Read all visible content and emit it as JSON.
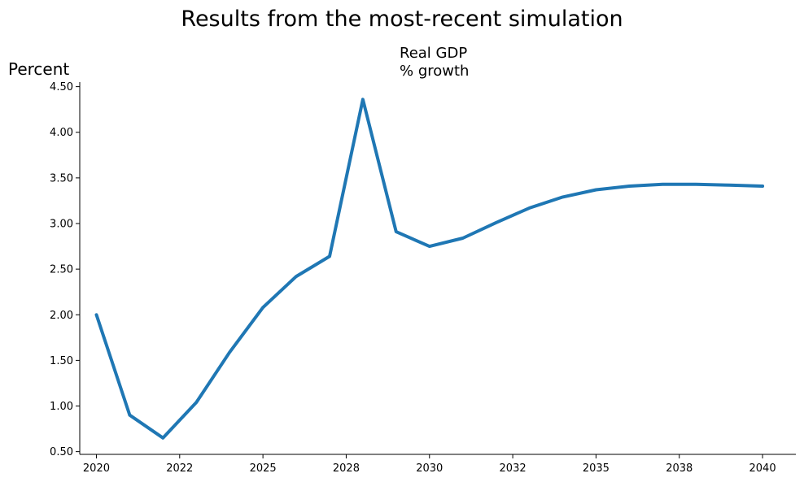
{
  "figure_title": "Results from the most-recent simulation",
  "chart_data": {
    "type": "line",
    "title_lines": [
      "Real GDP",
      "% growth"
    ],
    "ylabel": "Percent",
    "xlabel": "",
    "xlim": [
      2019.5,
      2041.0
    ],
    "ylim": [
      0.47,
      4.55
    ],
    "x_ticks": [
      {
        "x": 2020,
        "label": "2020"
      },
      {
        "x": 2022.5,
        "label": "2022"
      },
      {
        "x": 2025,
        "label": "2025"
      },
      {
        "x": 2027.5,
        "label": "2028"
      },
      {
        "x": 2030,
        "label": "2030"
      },
      {
        "x": 2032.5,
        "label": "2032"
      },
      {
        "x": 2035,
        "label": "2035"
      },
      {
        "x": 2037.5,
        "label": "2038"
      },
      {
        "x": 2040,
        "label": "2040"
      }
    ],
    "y_ticks": [
      {
        "y": 0.5,
        "label": "0.50"
      },
      {
        "y": 1.0,
        "label": "1.00"
      },
      {
        "y": 1.5,
        "label": "1.50"
      },
      {
        "y": 2.0,
        "label": "2.00"
      },
      {
        "y": 2.5,
        "label": "2.50"
      },
      {
        "y": 3.0,
        "label": "3.00"
      },
      {
        "y": 3.5,
        "label": "3.50"
      },
      {
        "y": 4.0,
        "label": "4.00"
      },
      {
        "y": 4.5,
        "label": "4.50"
      }
    ],
    "grid": false,
    "series": [
      {
        "color": "#1f77b4",
        "points": [
          {
            "x": 2020,
            "y": 2.0
          },
          {
            "x": 2021,
            "y": 0.9
          },
          {
            "x": 2022,
            "y": 0.65
          },
          {
            "x": 2023,
            "y": 1.04
          },
          {
            "x": 2024,
            "y": 1.59
          },
          {
            "x": 2025,
            "y": 2.08
          },
          {
            "x": 2026,
            "y": 2.42
          },
          {
            "x": 2027,
            "y": 2.64
          },
          {
            "x": 2028,
            "y": 4.36
          },
          {
            "x": 2029,
            "y": 2.91
          },
          {
            "x": 2030,
            "y": 2.75
          },
          {
            "x": 2031,
            "y": 2.84
          },
          {
            "x": 2032,
            "y": 3.01
          },
          {
            "x": 2033,
            "y": 3.17
          },
          {
            "x": 2034,
            "y": 3.29
          },
          {
            "x": 2035,
            "y": 3.37
          },
          {
            "x": 2036,
            "y": 3.41
          },
          {
            "x": 2037,
            "y": 3.43
          },
          {
            "x": 2038,
            "y": 3.43
          },
          {
            "x": 2039,
            "y": 3.42
          },
          {
            "x": 2040,
            "y": 3.41
          }
        ]
      }
    ]
  }
}
